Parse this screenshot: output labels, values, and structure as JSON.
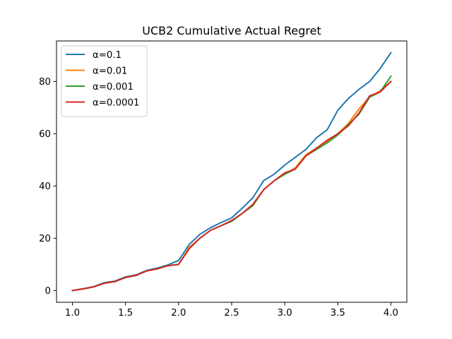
{
  "chart_data": {
    "type": "line",
    "title": "UCB2 Cumulative Actual Regret",
    "xlabel": "",
    "ylabel": "",
    "xlim": [
      0.85,
      4.15
    ],
    "ylim": [
      -4.5,
      95.5
    ],
    "xticks": [
      1.0,
      1.5,
      2.0,
      2.5,
      3.0,
      3.5,
      4.0
    ],
    "xtick_labels": [
      "1.0",
      "1.5",
      "2.0",
      "2.5",
      "3.0",
      "3.5",
      "4.0"
    ],
    "yticks": [
      0,
      20,
      40,
      60,
      80
    ],
    "ytick_labels": [
      "0",
      "20",
      "40",
      "60",
      "80"
    ],
    "grid": false,
    "legend_position": "upper-left",
    "x": [
      1.0,
      1.1,
      1.2,
      1.3,
      1.4,
      1.5,
      1.6,
      1.7,
      1.8,
      1.9,
      2.0,
      2.1,
      2.2,
      2.3,
      2.4,
      2.5,
      2.6,
      2.7,
      2.8,
      2.9,
      3.0,
      3.1,
      3.2,
      3.3,
      3.4,
      3.5,
      3.6,
      3.7,
      3.8,
      3.9,
      4.0
    ],
    "series": [
      {
        "name": "α=0.1",
        "color": "#1f77b4",
        "values": [
          0,
          0.7,
          1.5,
          3.0,
          3.6,
          5.2,
          6.0,
          7.7,
          8.6,
          9.8,
          11.5,
          17.6,
          21.5,
          24.0,
          26.0,
          27.8,
          31.5,
          35.5,
          42.0,
          44.5,
          48.0,
          51.0,
          54.0,
          58.5,
          61.5,
          69.0,
          73.5,
          77.0,
          80.0,
          85.0,
          91.0
        ]
      },
      {
        "name": "α=0.01",
        "color": "#ff7f0e",
        "values": [
          0,
          0.6,
          1.4,
          2.8,
          3.4,
          5.0,
          5.8,
          7.5,
          8.3,
          9.5,
          10.0,
          16.5,
          20.0,
          23.0,
          24.8,
          26.5,
          29.5,
          32.5,
          38.5,
          42.0,
          44.5,
          47.0,
          52.0,
          54.5,
          57.0,
          60.0,
          64.0,
          69.5,
          74.0,
          76.5,
          80.0
        ]
      },
      {
        "name": "α=0.001",
        "color": "#2ca02c",
        "values": [
          0,
          0.6,
          1.4,
          2.8,
          3.4,
          5.0,
          5.8,
          7.5,
          8.3,
          9.5,
          10.0,
          16.0,
          20.0,
          23.0,
          24.8,
          26.5,
          29.5,
          32.5,
          38.5,
          42.0,
          44.5,
          46.5,
          51.5,
          54.0,
          56.5,
          59.5,
          63.5,
          67.5,
          74.0,
          76.0,
          82.0
        ]
      },
      {
        "name": "α=0.0001",
        "color": "#d62728",
        "values": [
          0,
          0.6,
          1.4,
          2.8,
          3.4,
          5.0,
          5.8,
          7.5,
          8.3,
          9.5,
          10.0,
          16.0,
          20.0,
          23.0,
          24.8,
          26.8,
          29.5,
          33.0,
          38.5,
          42.0,
          45.0,
          46.5,
          51.5,
          54.5,
          57.5,
          60.0,
          63.0,
          68.0,
          74.5,
          76.0,
          80.0
        ]
      }
    ]
  }
}
